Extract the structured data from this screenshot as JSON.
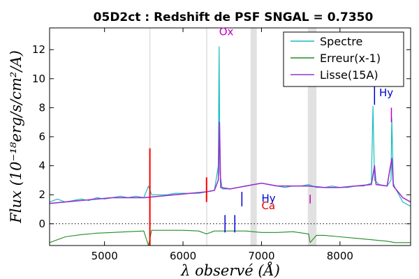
{
  "chart_data": {
    "type": "line",
    "title": "05D2ct : Redshift de PSF SNGAL = 0.7350",
    "xlabel": "λ observé (Å)",
    "ylabel": "Flux (10⁻¹⁸erg/s/cm²/A)",
    "xlim": [
      4300,
      8900
    ],
    "ylim": [
      -1.5,
      13.5
    ],
    "x_ticks": [
      5000,
      6000,
      7000,
      8000
    ],
    "y_ticks": [
      0,
      2,
      4,
      6,
      8,
      10,
      12
    ],
    "legend_position": "top-right",
    "zero_line": 0,
    "sky_bands": [
      {
        "from": 5570,
        "to": 5585
      },
      {
        "from": 6295,
        "to": 6310
      },
      {
        "from": 6860,
        "to": 6940
      },
      {
        "from": 7590,
        "to": 7700
      }
    ],
    "series": [
      {
        "name": "Spectre",
        "color": "#17bcbf",
        "x": [
          4300,
          4400,
          4500,
          4600,
          4700,
          4800,
          4900,
          5000,
          5100,
          5200,
          5300,
          5400,
          5500,
          5560,
          5600,
          5700,
          5800,
          5900,
          6000,
          6100,
          6200,
          6300,
          6400,
          6450,
          6460,
          6470,
          6500,
          6600,
          6700,
          6800,
          6900,
          7000,
          7100,
          7200,
          7300,
          7400,
          7500,
          7600,
          7700,
          7800,
          7900,
          8000,
          8100,
          8200,
          8300,
          8400,
          8420,
          8440,
          8500,
          8600,
          8650,
          8660,
          8680,
          8700,
          8800,
          8900
        ],
        "y": [
          1.5,
          1.7,
          1.5,
          1.6,
          1.7,
          1.6,
          1.8,
          1.7,
          1.8,
          1.9,
          1.8,
          1.9,
          1.8,
          2.6,
          2.0,
          2.0,
          2.0,
          2.1,
          2.1,
          2.1,
          2.1,
          2.2,
          2.3,
          4.0,
          12.2,
          3.5,
          2.4,
          2.4,
          2.5,
          2.6,
          2.7,
          2.8,
          2.7,
          2.6,
          2.5,
          2.6,
          2.6,
          2.7,
          2.5,
          2.5,
          2.6,
          2.5,
          2.5,
          2.6,
          2.6,
          2.8,
          8.1,
          3.0,
          2.7,
          2.6,
          3.0,
          7.3,
          2.8,
          2.5,
          1.5,
          1.2
        ]
      },
      {
        "name": "Erreur(x-1)",
        "color": "#228b22",
        "x": [
          4300,
          4500,
          4700,
          4900,
          5100,
          5300,
          5500,
          5560,
          5600,
          5800,
          6000,
          6200,
          6300,
          6400,
          6600,
          6800,
          7000,
          7200,
          7400,
          7600,
          7620,
          7700,
          7800,
          8000,
          8200,
          8400,
          8600,
          8700,
          8800,
          8900
        ],
        "y": [
          -1.3,
          -0.9,
          -0.75,
          -0.65,
          -0.6,
          -0.55,
          -0.5,
          -1.5,
          -0.45,
          -0.45,
          -0.45,
          -0.5,
          -0.7,
          -0.5,
          -0.5,
          -0.5,
          -0.6,
          -0.6,
          -0.55,
          -0.7,
          -1.3,
          -0.8,
          -0.8,
          -0.9,
          -1.0,
          -1.1,
          -1.2,
          -1.3,
          -1.3,
          -1.3
        ]
      },
      {
        "name": "Lisse(15A)",
        "color": "#9932cc",
        "x": [
          4300,
          4500,
          4700,
          4900,
          5100,
          5300,
          5500,
          5700,
          5900,
          6100,
          6300,
          6400,
          6450,
          6465,
          6480,
          6600,
          6800,
          7000,
          7200,
          7400,
          7600,
          7800,
          8000,
          8200,
          8400,
          8440,
          8460,
          8600,
          8660,
          8680,
          8800,
          8900
        ],
        "y": [
          1.4,
          1.5,
          1.6,
          1.7,
          1.8,
          1.8,
          1.8,
          1.9,
          2.0,
          2.1,
          2.2,
          2.3,
          3.0,
          7.0,
          2.5,
          2.4,
          2.6,
          2.8,
          2.6,
          2.6,
          2.6,
          2.5,
          2.5,
          2.6,
          2.7,
          4.0,
          2.7,
          2.6,
          4.5,
          2.6,
          1.8,
          1.5
        ]
      }
    ],
    "annotations": [
      {
        "text": "Ox",
        "x": 6460,
        "y": 13.0,
        "color": "#c000c0"
      },
      {
        "text": "Hy",
        "x": 8500,
        "y": 8.8,
        "color": "#0000cd"
      },
      {
        "text": "Hy",
        "x": 7000,
        "y": 1.5,
        "color": "#0000cd"
      },
      {
        "text": "Ca",
        "x": 7000,
        "y": 1.0,
        "color": "#e00000"
      }
    ]
  }
}
